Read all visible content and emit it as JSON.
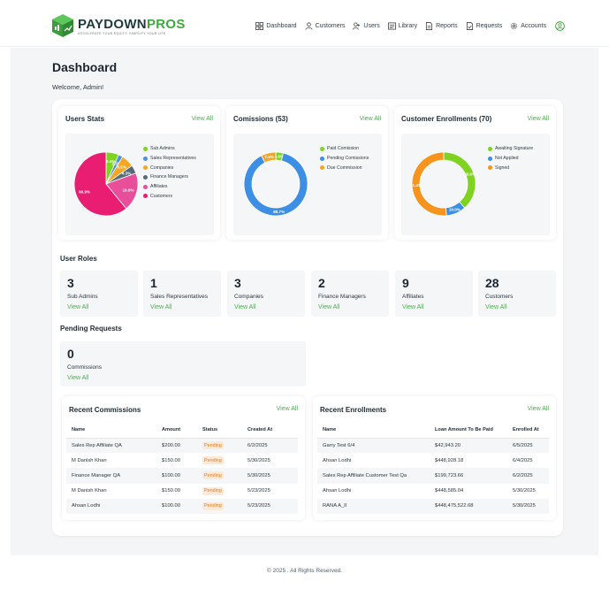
{
  "header": {
    "logo_text_main": "PAYDOWN",
    "logo_text_accent": "PROS",
    "logo_tagline": "ACCELERATE YOUR EQUITY. SIMPLIFY YOUR LIFE",
    "nav": [
      {
        "label": "Dashboard",
        "icon": "dashboard-icon"
      },
      {
        "label": "Customers",
        "icon": "customers-icon"
      },
      {
        "label": "Users",
        "icon": "users-icon"
      },
      {
        "label": "Library",
        "icon": "library-icon"
      },
      {
        "label": "Reports",
        "icon": "reports-icon"
      },
      {
        "label": "Requests",
        "icon": "requests-icon"
      },
      {
        "label": "Accounts",
        "icon": "gear-icon"
      }
    ]
  },
  "page": {
    "title": "Dashboard",
    "welcome": "Welcome, Admin!"
  },
  "users_stats": {
    "title": "Users Stats",
    "link": "View All",
    "legend": [
      "Sub Admins",
      "Sales Representatives",
      "Companies",
      "Finance Managers",
      "Affiliates",
      "Customers"
    ],
    "labels": [
      "6.5%",
      "2.2%",
      "6.5%",
      "4.3%",
      "19.6%",
      "60.9%"
    ]
  },
  "commissions_chart": {
    "title": "Comissions (53)",
    "link": "View All",
    "legend": [
      "Paid Comission",
      "Pending Comissions",
      "Due Commission"
    ],
    "labels": [
      "7.5%",
      "3.8%",
      "88.7%"
    ]
  },
  "enrollments_chart": {
    "title": "Customer Enrollments (70)",
    "link": "View All",
    "legend": [
      "Awaiting Signature",
      "Not Applied",
      "Signed"
    ],
    "labels": [
      "38.6%",
      "10.0%",
      "51.4%"
    ]
  },
  "chart_data": [
    {
      "type": "pie",
      "title": "Users Stats",
      "categories": [
        "Sub Admins",
        "Sales Representatives",
        "Companies",
        "Finance Managers",
        "Affiliates",
        "Customers"
      ],
      "values": [
        6.5,
        2.2,
        6.5,
        4.3,
        19.6,
        60.9
      ],
      "colors": [
        "#7ed321",
        "#4a90e2",
        "#f5a623",
        "#556b7a",
        "#e94e9a",
        "#e91e73"
      ]
    },
    {
      "type": "pie",
      "donut": true,
      "title": "Comissions (53)",
      "categories": [
        "Paid Comission",
        "Pending Comissions",
        "Due Commission"
      ],
      "values": [
        3.8,
        88.7,
        7.5
      ],
      "colors": [
        "#7ed321",
        "#3d8fe6",
        "#f5a623"
      ]
    },
    {
      "type": "pie",
      "donut": true,
      "title": "Customer Enrollments (70)",
      "categories": [
        "Awaiting Signature",
        "Not Applied",
        "Signed"
      ],
      "values": [
        38.6,
        10.0,
        51.4
      ],
      "colors": [
        "#7ed321",
        "#3d8fe6",
        "#f7941d"
      ]
    }
  ],
  "user_roles": {
    "title": "User Roles",
    "items": [
      {
        "count": "3",
        "label": "Sub Admins",
        "link": "View All"
      },
      {
        "count": "1",
        "label": "Sales Representatives",
        "link": "View All"
      },
      {
        "count": "3",
        "label": "Companies",
        "link": "View All"
      },
      {
        "count": "2",
        "label": "Finance Managers",
        "link": "View All"
      },
      {
        "count": "9",
        "label": "Affiliates",
        "link": "View All"
      },
      {
        "count": "28",
        "label": "Customers",
        "link": "View All"
      }
    ]
  },
  "pending_requests": {
    "title": "Pending Requests",
    "count": "0",
    "label": "Commissions",
    "link": "View All"
  },
  "recent_commissions": {
    "title": "Recent Commissions",
    "link": "View All",
    "columns": [
      "Name",
      "Amount",
      "Status",
      "Created At"
    ],
    "rows": [
      {
        "name": "Sales Rep Affiliate QA",
        "amount": "$200.00",
        "status": "Pending",
        "date": "6/2/2025"
      },
      {
        "name": "M Danish Khan",
        "amount": "$150.00",
        "status": "Pending",
        "date": "5/30/2025"
      },
      {
        "name": "Finance Manager QA",
        "amount": "$100.00",
        "status": "Pending",
        "date": "5/30/2025"
      },
      {
        "name": "M Danish Khan",
        "amount": "$150.00",
        "status": "Pending",
        "date": "5/23/2025"
      },
      {
        "name": "Ahsan Lodhi",
        "amount": "$100.00",
        "status": "Pending",
        "date": "5/23/2025"
      }
    ]
  },
  "recent_enrollments": {
    "title": "Recent Enrollments",
    "link": "View All",
    "columns": [
      "Name",
      "Loan Amount To Be Paid",
      "Enrolled At"
    ],
    "rows": [
      {
        "name": "Garry Test 6/4",
        "amount": "$42,943.20",
        "date": "6/5/2025"
      },
      {
        "name": "Ahsan Lodhi",
        "amount": "$448,928.18",
        "date": "6/4/2025"
      },
      {
        "name": "Sales Rep Affiliate Customer Test Qa",
        "amount": "$199,723.66",
        "date": "6/2/2025"
      },
      {
        "name": "Ahsan Lodhi",
        "amount": "$448,585.04",
        "date": "5/30/2025"
      },
      {
        "name": "RANA A_II",
        "amount": "$448,475,522.68",
        "date": "5/30/2025"
      }
    ]
  },
  "footer": {
    "text": "© 2025 . All Rights Reserved."
  },
  "colors": {
    "accent": "#4caf50",
    "pending_bg": "#fde9d7",
    "pending_text": "#e57c1f"
  }
}
